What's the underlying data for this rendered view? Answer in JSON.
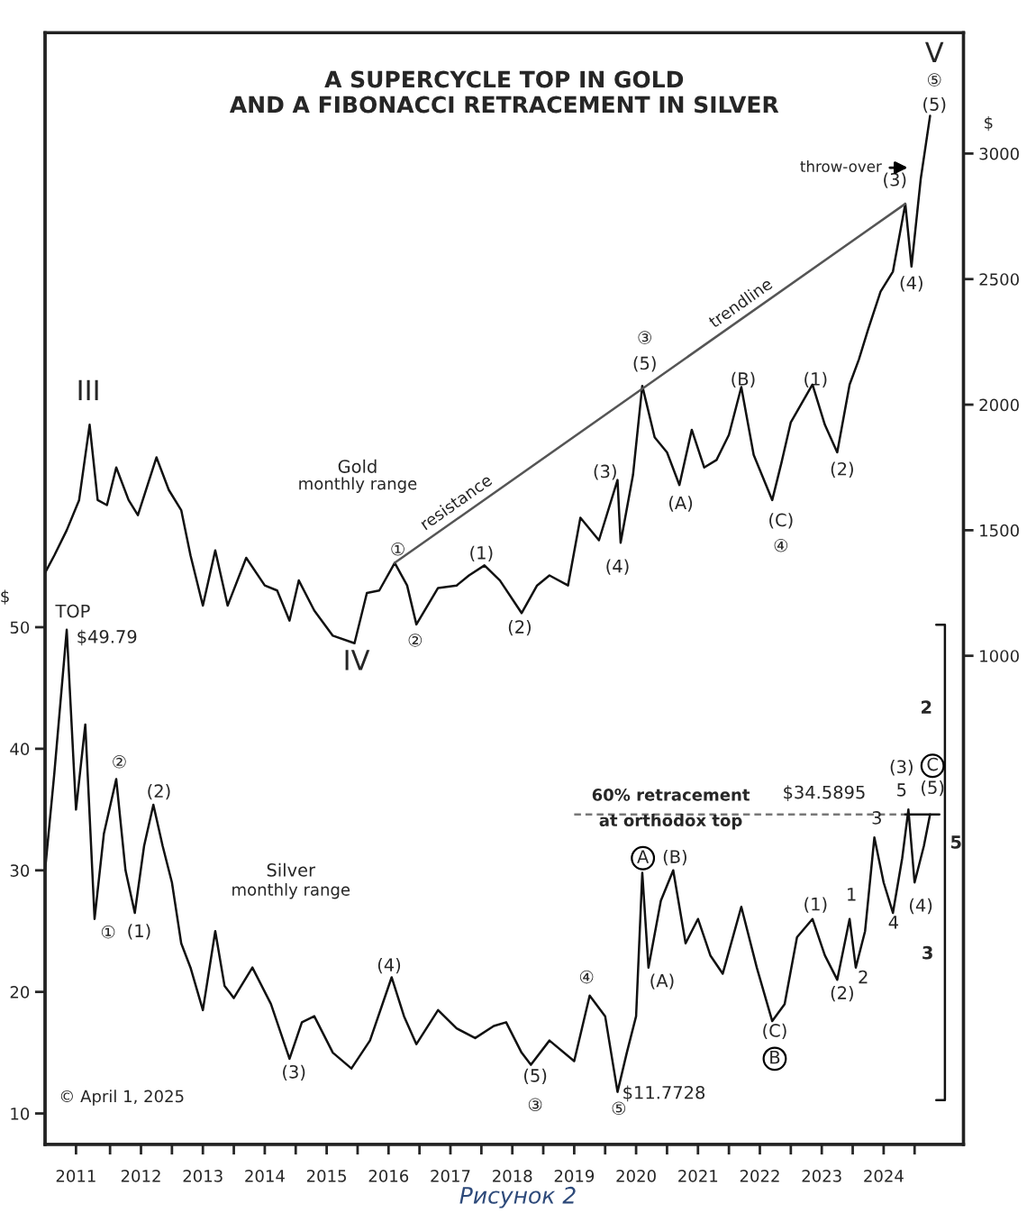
{
  "chart_data": {
    "type": "line",
    "title": "A SUPERCYCLE TOP IN GOLD\nAND A FIBONACCI RETRACEMENT IN SILVER",
    "ylabel": "$",
    "y2label": "$",
    "xlim": [
      2010.95,
      2025.79
    ],
    "xticks": [
      {
        "value": 2012,
        "label": null
      },
      {
        "value": 2013,
        "label": null
      },
      {
        "value": 2014,
        "label": null
      },
      {
        "value": 2015,
        "label": null
      },
      {
        "value": 2016,
        "label": null
      },
      {
        "value": 2017,
        "label": null
      },
      {
        "value": 2018,
        "label": null
      },
      {
        "value": 2019,
        "label": null
      },
      {
        "value": 2020,
        "label": null
      },
      {
        "value": 2021,
        "label": null
      },
      {
        "value": 2022,
        "label": null
      },
      {
        "value": 2023,
        "label": null
      },
      {
        "value": 2024,
        "label": null
      },
      {
        "value": 2025,
        "label": null
      },
      {
        "value": 2011.45,
        "label": "2011"
      },
      {
        "value": 2012.5,
        "label": "2012"
      },
      {
        "value": 2013.5,
        "label": "2013"
      },
      {
        "value": 2014.5,
        "label": "2014"
      },
      {
        "value": 2015.5,
        "label": "2015"
      },
      {
        "value": 2016.5,
        "label": "2016"
      },
      {
        "value": 2017.5,
        "label": "2017"
      },
      {
        "value": 2018.5,
        "label": "2018"
      },
      {
        "value": 2019.5,
        "label": "2019"
      },
      {
        "value": 2020.5,
        "label": "2020"
      },
      {
        "value": 2021.5,
        "label": "2021"
      },
      {
        "value": 2022.5,
        "label": "2022"
      },
      {
        "value": 2023.5,
        "label": "2023"
      },
      {
        "value": 2024.5,
        "label": "2024"
      }
    ],
    "ylim": [
      7.45,
      98.9
    ],
    "yticks": [
      10,
      20,
      30,
      40,
      50
    ],
    "y2lim": [
      -946,
      3481
    ],
    "y2ticks": [
      1000,
      1500,
      2000,
      2500,
      3000
    ],
    "marker": "none",
    "grid": false,
    "series": [
      {
        "color": "#111111",
        "x": [
          2010.95,
          2011.1,
          2011.3,
          2011.45,
          2011.6,
          2011.75,
          2011.9,
          2012.1,
          2012.25,
          2012.4,
          2012.55,
          2012.7,
          2012.85,
          2013.0,
          2013.15,
          2013.3,
          2013.5,
          2013.7,
          2013.85,
          2014.0,
          2014.3,
          2014.6,
          2014.9,
          2015.1,
          2015.3,
          2015.6,
          2015.9,
          2016.2,
          2016.55,
          2016.75,
          2016.95,
          2017.3,
          2017.6,
          2017.9,
          2018.2,
          2018.4,
          2018.65,
          2018.8,
          2019.1,
          2019.5,
          2019.75,
          2020.0,
          2020.2,
          2020.35,
          2020.5,
          2020.6,
          2020.7,
          2020.9,
          2021.1,
          2021.3,
          2021.5,
          2021.7,
          2021.9,
          2022.2,
          2022.45,
          2022.7,
          2022.9,
          2023.1,
          2023.35,
          2023.55,
          2023.75,
          2023.95,
          2024.05,
          2024.2,
          2024.35,
          2024.5,
          2024.65,
          2024.8,
          2024.9,
          2025.0,
          2025.15,
          2025.25
        ],
        "values": [
          30,
          38,
          49.79,
          35,
          42,
          26,
          33,
          37.5,
          30,
          26.5,
          32,
          35.4,
          32,
          29,
          24,
          22,
          18.5,
          25,
          20.5,
          19.5,
          22,
          19,
          14.5,
          17.5,
          18,
          15,
          13.7,
          16,
          21.2,
          18,
          15.7,
          18.5,
          17,
          16.2,
          17.2,
          17.5,
          15,
          14,
          16,
          14.3,
          19.7,
          18,
          11.7728,
          15,
          18,
          29.8,
          22,
          27.5,
          30,
          24,
          26,
          23,
          21.5,
          27,
          22,
          17.6,
          19,
          24.5,
          26,
          23,
          21,
          26,
          22,
          25,
          32.7,
          29,
          26.5,
          31,
          35,
          29,
          32,
          34.6
        ]
      },
      {
        "color": "#111111",
        "axis": "y2",
        "x": [
          2010.95,
          2011.1,
          2011.3,
          2011.5,
          2011.67,
          2011.8,
          2011.95,
          2012.1,
          2012.3,
          2012.45,
          2012.75,
          2012.95,
          2013.15,
          2013.3,
          2013.5,
          2013.7,
          2013.9,
          2014.2,
          2014.5,
          2014.7,
          2014.9,
          2015.05,
          2015.3,
          2015.6,
          2015.95,
          2016.15,
          2016.35,
          2016.6,
          2016.8,
          2016.95,
          2017.3,
          2017.6,
          2017.8,
          2018.05,
          2018.3,
          2018.65,
          2018.9,
          2019.1,
          2019.4,
          2019.6,
          2019.9,
          2020.2,
          2020.25,
          2020.45,
          2020.6,
          2020.8,
          2021.0,
          2021.2,
          2021.4,
          2021.6,
          2021.8,
          2022.0,
          2022.2,
          2022.4,
          2022.7,
          2022.85,
          2023.0,
          2023.35,
          2023.55,
          2023.75,
          2023.95,
          2024.1,
          2024.25,
          2024.45,
          2024.65,
          2024.85,
          2024.95,
          2025.1,
          2025.25
        ],
        "values": [
          1330,
          1400,
          1500,
          1620,
          1920,
          1620,
          1600,
          1750,
          1620,
          1560,
          1790,
          1660,
          1580,
          1400,
          1200,
          1420,
          1200,
          1390,
          1280,
          1260,
          1140,
          1300,
          1180,
          1080,
          1050,
          1250,
          1260,
          1370,
          1280,
          1125,
          1270,
          1280,
          1320,
          1360,
          1300,
          1170,
          1280,
          1320,
          1280,
          1550,
          1460,
          1700,
          1450,
          1720,
          2075,
          1870,
          1810,
          1680,
          1900,
          1750,
          1780,
          1880,
          2070,
          1800,
          1620,
          1770,
          1930,
          2080,
          1920,
          1810,
          2080,
          2180,
          2300,
          2450,
          2530,
          2800,
          2550,
          2900,
          3150
        ]
      },
      {
        "color": "#555555",
        "axis": "y2",
        "x": [
          2016.6,
          2024.85
        ],
        "values": [
          1370,
          2800
        ]
      },
      {
        "color": "#777777",
        "line_style": "dashed",
        "x": [
          2019.5,
          2024.85
        ],
        "values": [
          34.5895,
          34.5895
        ]
      },
      {
        "color": "#111111",
        "x": [
          2024.85,
          2025.4
        ],
        "values": [
          34.5895,
          34.5895
        ]
      },
      {
        "color": "#111111",
        "x": [
          2025.35,
          2025.49,
          2025.49,
          2025.35
        ],
        "values": [
          50.2,
          50.2,
          11.1,
          11.1
        ]
      }
    ],
    "annotations": [
      "III",
      "Gold",
      "monthly range",
      "①",
      "resistance",
      "(1)",
      "②",
      "IV",
      "(2)",
      "(3)",
      "(4)",
      "③",
      "(5)",
      "trendline",
      "(A)",
      "(B)",
      "(C)",
      "④",
      "(1)",
      "(2)",
      "(3)",
      "(4)",
      "throw-over",
      "V",
      "⑤",
      "(5)",
      "TOP",
      "$49.79",
      "①",
      "(1)",
      "②",
      "(2)",
      "Silver",
      "monthly range",
      "(3)",
      "(4)",
      "(5)",
      "③",
      "④",
      "⑤",
      "$11.7728",
      "A",
      "(B)",
      "(A)",
      "(C)",
      "B",
      "(1)",
      "1",
      "(2)",
      "2",
      "3",
      "4",
      "5",
      "(3)",
      "(4)",
      "(5)",
      "C",
      "60% retracement",
      "at orthodox top",
      "$34.5895",
      "2",
      "5",
      "3",
      "© April 1, 2025",
      "Рисунок 2"
    ]
  }
}
